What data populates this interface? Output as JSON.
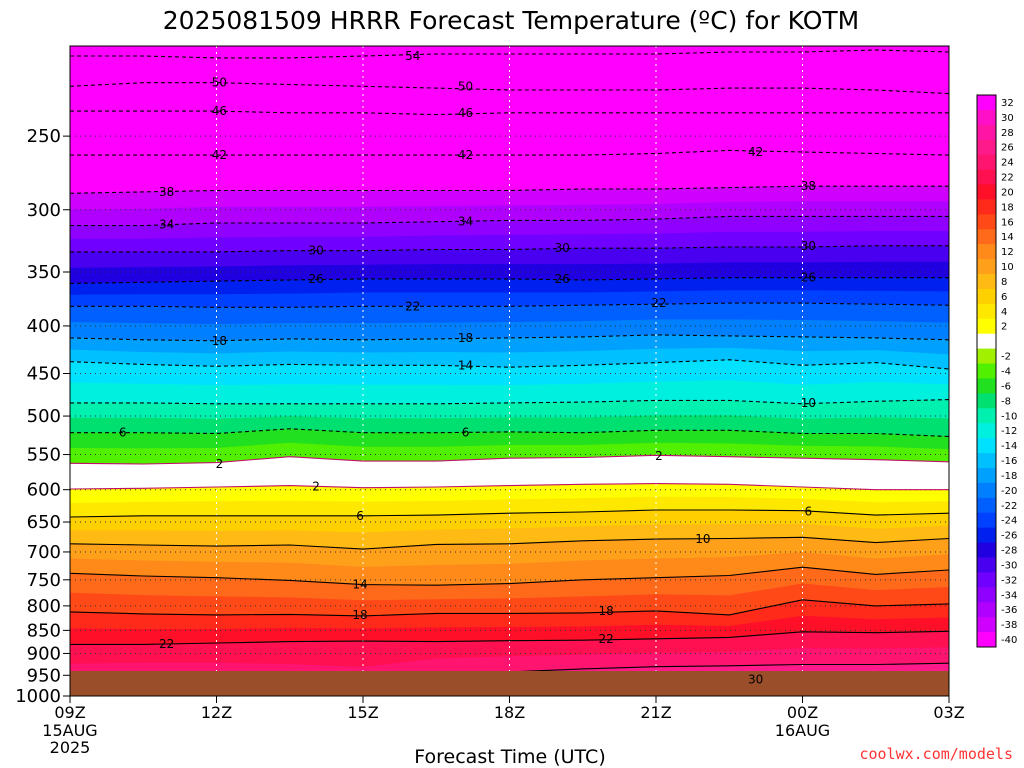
{
  "title": "2025081509 HRRR Forecast Temperature (ºC) for KOTM",
  "credit": "coolwx.com/models",
  "chart_data": {
    "type": "heatmap",
    "title": "2025081509 HRRR Forecast Temperature (ºC) for KOTM",
    "xlabel": "Forecast Time (UTC)",
    "ylabel": "",
    "x_ticks": [
      {
        "label": "09Z",
        "sub": [
          "15AUG",
          "2025"
        ]
      },
      {
        "label": "12Z",
        "sub": []
      },
      {
        "label": "15Z",
        "sub": []
      },
      {
        "label": "18Z",
        "sub": []
      },
      {
        "label": "21Z",
        "sub": []
      },
      {
        "label": "00Z",
        "sub": [
          "16AUG"
        ]
      },
      {
        "label": "03Z",
        "sub": []
      }
    ],
    "y_ticks": [
      250,
      300,
      350,
      400,
      450,
      500,
      550,
      600,
      650,
      700,
      750,
      800,
      850,
      900,
      950,
      1000
    ],
    "y_range_hpa": [
      200,
      1000
    ],
    "y_scale": "log-pressure",
    "color_scale": [
      {
        "label": "32",
        "color": "#ff00ff"
      },
      {
        "label": "30",
        "color": "#ff10c8"
      },
      {
        "label": "28",
        "color": "#ff14a6"
      },
      {
        "label": "26",
        "color": "#ff1a8c"
      },
      {
        "label": "24",
        "color": "#ff1470"
      },
      {
        "label": "22",
        "color": "#ff1050"
      },
      {
        "label": "20",
        "color": "#ff1028"
      },
      {
        "label": "18",
        "color": "#ff2a1a"
      },
      {
        "label": "16",
        "color": "#ff4a18"
      },
      {
        "label": "14",
        "color": "#ff6a1a"
      },
      {
        "label": "12",
        "color": "#ff8a1a"
      },
      {
        "label": "10",
        "color": "#ffa01a"
      },
      {
        "label": "8",
        "color": "#ffba14"
      },
      {
        "label": "6",
        "color": "#ffd000"
      },
      {
        "label": "4",
        "color": "#ffe800"
      },
      {
        "label": "2",
        "color": "#ffff00"
      },
      {
        "label": "",
        "color": "#ffffff"
      },
      {
        "label": "-2",
        "color": "#a0f000"
      },
      {
        "label": "-4",
        "color": "#50f000"
      },
      {
        "label": "-6",
        "color": "#20e020"
      },
      {
        "label": "-8",
        "color": "#00e070"
      },
      {
        "label": "-10",
        "color": "#00f0b0"
      },
      {
        "label": "-12",
        "color": "#00f0e0"
      },
      {
        "label": "-14",
        "color": "#00e0ff"
      },
      {
        "label": "-16",
        "color": "#00c0ff"
      },
      {
        "label": "-18",
        "color": "#00a0ff"
      },
      {
        "label": "-20",
        "color": "#0080ff"
      },
      {
        "label": "-22",
        "color": "#0060ff"
      },
      {
        "label": "-24",
        "color": "#0040ff"
      },
      {
        "label": "-26",
        "color": "#0020f0"
      },
      {
        "label": "-28",
        "color": "#2000e0"
      },
      {
        "label": "-30",
        "color": "#4a00f0"
      },
      {
        "label": "-32",
        "color": "#7000ff"
      },
      {
        "label": "-34",
        "color": "#9000ff"
      },
      {
        "label": "-36",
        "color": "#b000ff"
      },
      {
        "label": "-38",
        "color": "#d000ff"
      },
      {
        "label": "-40",
        "color": "#ff00ff"
      }
    ],
    "contours": [
      {
        "value": -54,
        "p": [
          205,
          205,
          206,
          206,
          205,
          204,
          204,
          204,
          204,
          203,
          203,
          202,
          203
        ]
      },
      {
        "value": -50,
        "p": [
          221,
          219,
          219,
          220,
          221,
          222,
          223,
          223,
          223,
          222,
          222,
          223,
          225
        ]
      },
      {
        "value": -46,
        "p": [
          235,
          235,
          235,
          236,
          236,
          237,
          236,
          236,
          236,
          236,
          236,
          236,
          236
        ]
      },
      {
        "value": -42,
        "p": [
          262,
          262,
          262,
          262,
          262,
          262,
          262,
          262,
          261,
          259,
          260,
          261,
          262
        ]
      },
      {
        "value": -38,
        "p": [
          288,
          287,
          286,
          286,
          286,
          286,
          286,
          285,
          285,
          284,
          283,
          283,
          283
        ]
      },
      {
        "value": -34,
        "p": [
          312,
          312,
          310,
          310,
          310,
          309,
          308,
          308,
          307,
          305,
          305,
          305,
          305
        ]
      },
      {
        "value": -30,
        "p": [
          333,
          333,
          333,
          332,
          332,
          331,
          331,
          330,
          330,
          329,
          329,
          328,
          328
        ]
      },
      {
        "value": -26,
        "p": [
          360,
          359,
          358,
          357,
          356,
          356,
          356,
          357,
          356,
          355,
          355,
          355,
          355
        ]
      },
      {
        "value": -22,
        "p": [
          381,
          381,
          382,
          382,
          381,
          381,
          381,
          380,
          379,
          378,
          378,
          379,
          380
        ]
      },
      {
        "value": -18,
        "p": [
          412,
          414,
          415,
          413,
          414,
          413,
          412,
          411,
          409,
          410,
          411,
          412,
          414
        ]
      },
      {
        "value": -14,
        "p": [
          437,
          440,
          442,
          440,
          441,
          441,
          443,
          441,
          438,
          435,
          441,
          438,
          445
        ]
      },
      {
        "value": -10,
        "p": [
          484,
          484,
          485,
          485,
          485,
          485,
          484,
          483,
          481,
          481,
          485,
          482,
          480
        ]
      },
      {
        "value": -6,
        "p": [
          521,
          521,
          522,
          516,
          521,
          521,
          520,
          521,
          518,
          518,
          522,
          522,
          526
        ]
      },
      {
        "value": -2,
        "p": [
          562,
          563,
          561,
          553,
          559,
          559,
          555,
          554,
          551,
          553,
          555,
          557,
          560
        ]
      },
      {
        "value": 2,
        "p": [
          599,
          598,
          596,
          594,
          597,
          596,
          594,
          592,
          591,
          592,
          596,
          600,
          600
        ]
      },
      {
        "value": 6,
        "p": [
          642,
          640,
          640,
          640,
          640,
          639,
          636,
          634,
          631,
          631,
          632,
          639,
          636
        ]
      },
      {
        "value": 10,
        "p": [
          686,
          688,
          690,
          688,
          695,
          687,
          686,
          681,
          678,
          677,
          675,
          684,
          677
        ]
      },
      {
        "value": 14,
        "p": [
          738,
          743,
          746,
          751,
          759,
          760,
          757,
          750,
          746,
          742,
          727,
          740,
          732
        ]
      },
      {
        "value": 18,
        "p": [
          812,
          816,
          818,
          817,
          820,
          815,
          815,
          814,
          810,
          818,
          788,
          800,
          796
        ]
      },
      {
        "value": 22,
        "p": [
          880,
          880,
          877,
          874,
          873,
          874,
          872,
          871,
          868,
          865,
          853,
          855,
          852
        ]
      },
      {
        "value": 26,
        "p": [
          968,
          963,
          966,
          975,
          990,
          950,
          942,
          935,
          930,
          928,
          925,
          925,
          922
        ]
      },
      {
        "value": 30,
        "p": [
          990,
          990,
          990,
          990,
          990,
          990,
          980,
          972,
          968,
          964,
          960,
          960,
          960
        ]
      }
    ],
    "contour_labels": [
      {
        "text": "54",
        "t": 0.39,
        "p": 205
      },
      {
        "text": "50",
        "t": 0.17,
        "p": 219
      },
      {
        "text": "50",
        "t": 0.45,
        "p": 221
      },
      {
        "text": "46",
        "t": 0.17,
        "p": 235
      },
      {
        "text": "46",
        "t": 0.45,
        "p": 236
      },
      {
        "text": "42",
        "t": 0.17,
        "p": 262
      },
      {
        "text": "42",
        "t": 0.45,
        "p": 262
      },
      {
        "text": "42",
        "t": 0.78,
        "p": 260
      },
      {
        "text": "38",
        "t": 0.11,
        "p": 287
      },
      {
        "text": "38",
        "t": 0.84,
        "p": 283
      },
      {
        "text": "34",
        "t": 0.11,
        "p": 311
      },
      {
        "text": "34",
        "t": 0.45,
        "p": 309
      },
      {
        "text": "30",
        "t": 0.28,
        "p": 332
      },
      {
        "text": "30",
        "t": 0.56,
        "p": 330
      },
      {
        "text": "30",
        "t": 0.84,
        "p": 328
      },
      {
        "text": "26",
        "t": 0.28,
        "p": 356
      },
      {
        "text": "26",
        "t": 0.56,
        "p": 356
      },
      {
        "text": "26",
        "t": 0.84,
        "p": 355
      },
      {
        "text": "22",
        "t": 0.39,
        "p": 381
      },
      {
        "text": "22",
        "t": 0.67,
        "p": 378
      },
      {
        "text": "18",
        "t": 0.17,
        "p": 415
      },
      {
        "text": "18",
        "t": 0.45,
        "p": 412
      },
      {
        "text": "14",
        "t": 0.45,
        "p": 441
      },
      {
        "text": "10",
        "t": 0.84,
        "p": 484
      },
      {
        "text": "6",
        "t": 0.06,
        "p": 521
      },
      {
        "text": "6",
        "t": 0.45,
        "p": 521
      },
      {
        "text": "2",
        "t": 0.17,
        "p": 563
      },
      {
        "text": "2",
        "t": 0.67,
        "p": 552
      },
      {
        "text": "2",
        "t": 0.28,
        "p": 595
      },
      {
        "text": "6",
        "t": 0.33,
        "p": 640
      },
      {
        "text": "6",
        "t": 0.84,
        "p": 633
      },
      {
        "text": "10",
        "t": 0.72,
        "p": 678
      },
      {
        "text": "14",
        "t": 0.33,
        "p": 759
      },
      {
        "text": "18",
        "t": 0.33,
        "p": 818
      },
      {
        "text": "18",
        "t": 0.61,
        "p": 810
      },
      {
        "text": "22",
        "t": 0.11,
        "p": 879
      },
      {
        "text": "22",
        "t": 0.61,
        "p": 868
      },
      {
        "text": "30",
        "t": 0.78,
        "p": 960
      }
    ]
  }
}
